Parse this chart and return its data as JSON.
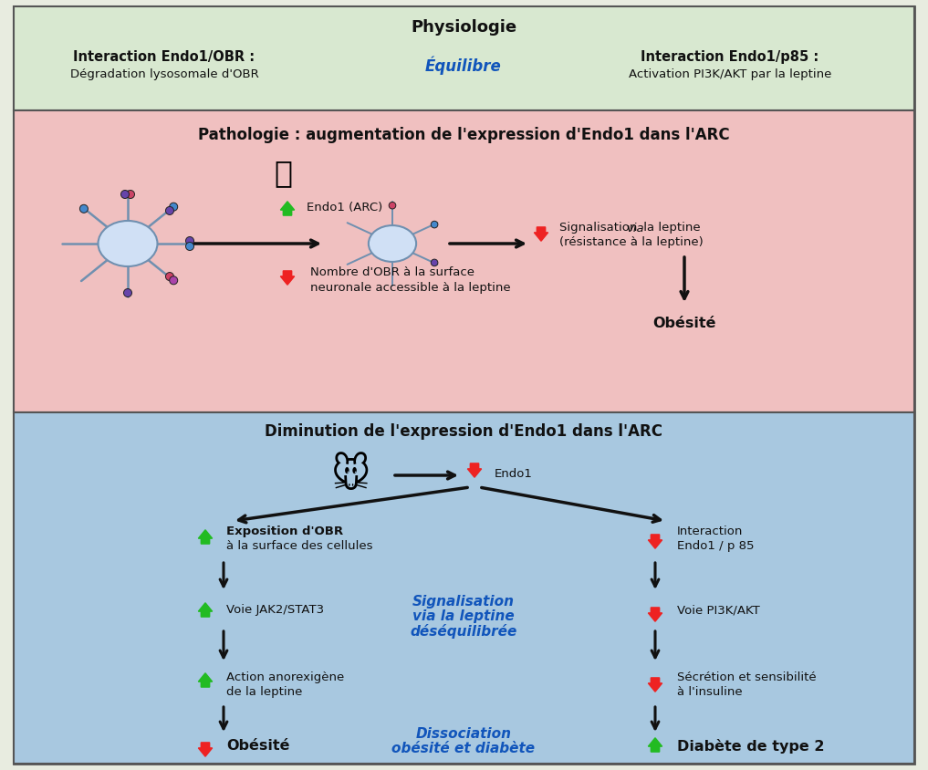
{
  "bg_outer": "#e8ece0",
  "bg_green": "#d8e8d0",
  "bg_pink": "#f0c0c0",
  "bg_blue": "#a8c8e0",
  "physio_title": "Physiologie",
  "physio_left_bold": "Interaction Endo1/OBR :",
  "physio_left_normal": "Dégradation lysosomale d'OBR",
  "physio_center": "Équilibre",
  "physio_right_bold": "Interaction Endo1/p85 :",
  "physio_right_normal": "Activation PI3K/AKT par la leptine",
  "patho_title": "Pathologie : augmentation de l'expression d'Endo1 dans l'ARC",
  "patho_endo1_label": "Endo1 (ARC)",
  "patho_obr_line1": "Nombre d'OBR à la surface",
  "patho_obr_line2": "neuronale accessible à la leptine",
  "patho_signal_line1": "Signalisation ",
  "patho_signal_via": "via",
  "patho_signal_line2": " la leptine",
  "patho_signal_line3": "(résistance à la leptine)",
  "patho_obesity": "Obésité",
  "dimin_title": "Diminution de l'expression d'Endo1 dans l'ARC",
  "dimin_endo1": "Endo1",
  "left_item1_b": "Exposition d'OBR",
  "left_item1_n": "à la surface des cellules",
  "left_item2": "Voie JAK2/STAT3",
  "left_item3a": "Action anorexigène",
  "left_item3b": "de la leptine",
  "left_bottom": "Obésité",
  "right_item1a": "Interaction",
  "right_item1b": "Endo1 / p 85",
  "right_item2": "Voie PI3K/AKT",
  "right_item3a": "Sécrétion et sensibilité",
  "right_item3b": "à l'insuline",
  "right_bottom": "Diabète de type 2",
  "center_mid1": "Signalisation",
  "center_mid2": "via la leptine",
  "center_mid3": "déséquilibrée",
  "center_bot1": "Dissociation",
  "center_bot2": "obésité et diabète",
  "green": "#22bb22",
  "red": "#ee2222",
  "blue_bold": "#1155bb",
  "dark": "#111111",
  "border": "#555555"
}
